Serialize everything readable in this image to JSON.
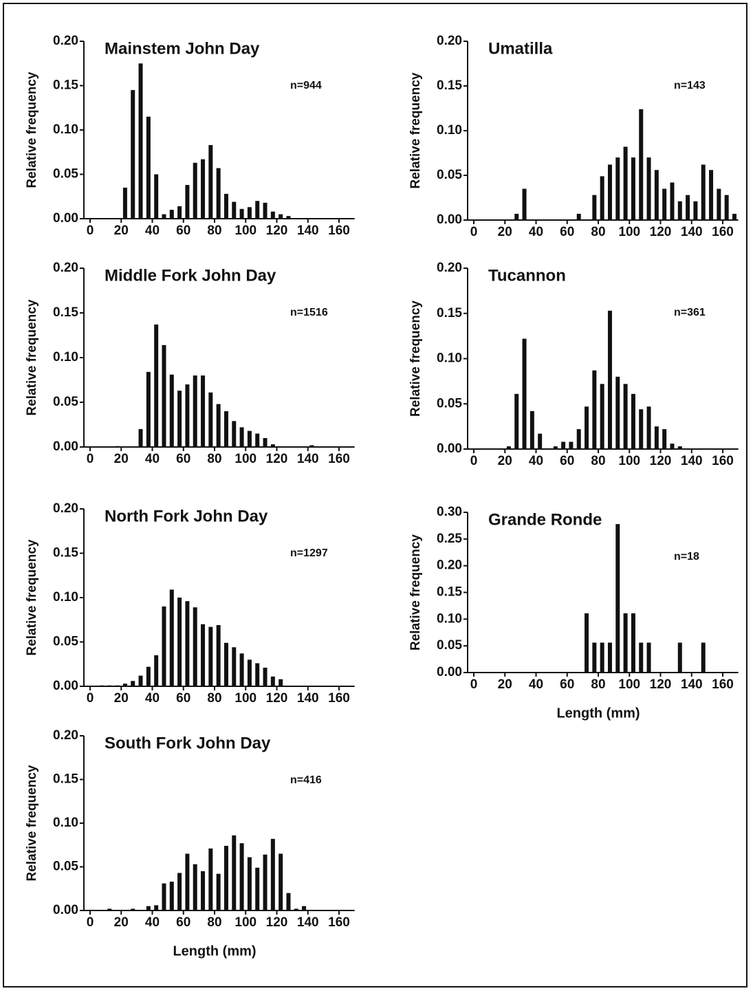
{
  "chart_data": [
    {
      "type": "bar",
      "title": "Mainstem John Day",
      "annotation": "n=944",
      "ylabel": "Relative frequency",
      "x": [
        22.5,
        27.5,
        32.5,
        37.5,
        42.5,
        47.5,
        52.5,
        57.5,
        62.5,
        67.5,
        72.5,
        77.5,
        82.5,
        87.5,
        92.5,
        97.5,
        102.5,
        107.5,
        112.5,
        117.5,
        122.5,
        127.5
      ],
      "values": [
        0.035,
        0.145,
        0.175,
        0.115,
        0.05,
        0.005,
        0.01,
        0.014,
        0.038,
        0.063,
        0.067,
        0.083,
        0.057,
        0.028,
        0.019,
        0.011,
        0.013,
        0.02,
        0.018,
        0.008,
        0.005,
        0.003
      ],
      "color": "#111111",
      "xlim": [
        0,
        170
      ],
      "xticks": [
        0,
        20,
        40,
        60,
        80,
        100,
        120,
        140,
        160
      ],
      "ylim": [
        0,
        0.2
      ],
      "yticks": [
        {
          "value": 0,
          "label": "0.00"
        },
        {
          "value": 0.05,
          "label": "0.05"
        },
        {
          "value": 0.1,
          "label": "0.10"
        },
        {
          "value": 0.15,
          "label": "0.15"
        },
        {
          "value": 0.2,
          "label": "0.20"
        }
      ]
    },
    {
      "type": "bar",
      "title": "Middle Fork John Day",
      "annotation": "n=1516",
      "ylabel": "Relative frequency",
      "x": [
        17.5,
        32.5,
        37.5,
        42.5,
        47.5,
        52.5,
        57.5,
        62.5,
        67.5,
        72.5,
        77.5,
        82.5,
        87.5,
        92.5,
        97.5,
        102.5,
        107.5,
        112.5,
        117.5,
        142.5
      ],
      "values": [
        0.001,
        0.02,
        0.084,
        0.137,
        0.114,
        0.081,
        0.063,
        0.07,
        0.08,
        0.08,
        0.061,
        0.048,
        0.04,
        0.029,
        0.022,
        0.018,
        0.015,
        0.01,
        0.003,
        0.002
      ],
      "color": "#111111",
      "xlim": [
        0,
        170
      ],
      "xticks": [
        0,
        20,
        40,
        60,
        80,
        100,
        120,
        140,
        160
      ],
      "ylim": [
        0,
        0.2
      ],
      "yticks": [
        {
          "value": 0,
          "label": "0.00"
        },
        {
          "value": 0.05,
          "label": "0.05"
        },
        {
          "value": 0.1,
          "label": "0.10"
        },
        {
          "value": 0.15,
          "label": "0.15"
        },
        {
          "value": 0.2,
          "label": "0.20"
        }
      ]
    },
    {
      "type": "bar",
      "title": "North Fork John Day",
      "annotation": "n=1297",
      "ylabel": "Relative frequency",
      "x": [
        7.5,
        12.5,
        17.5,
        22.5,
        27.5,
        32.5,
        37.5,
        42.5,
        47.5,
        52.5,
        57.5,
        62.5,
        67.5,
        72.5,
        77.5,
        82.5,
        87.5,
        92.5,
        97.5,
        102.5,
        107.5,
        112.5,
        117.5,
        122.5
      ],
      "values": [
        0.001,
        0.001,
        0.001,
        0.003,
        0.006,
        0.012,
        0.022,
        0.035,
        0.09,
        0.109,
        0.1,
        0.096,
        0.089,
        0.07,
        0.067,
        0.069,
        0.049,
        0.044,
        0.037,
        0.03,
        0.026,
        0.021,
        0.011,
        0.008
      ],
      "color": "#111111",
      "xlim": [
        0,
        170
      ],
      "xticks": [
        0,
        20,
        40,
        60,
        80,
        100,
        120,
        140,
        160
      ],
      "ylim": [
        0,
        0.2
      ],
      "yticks": [
        {
          "value": 0,
          "label": "0.00"
        },
        {
          "value": 0.05,
          "label": "0.05"
        },
        {
          "value": 0.1,
          "label": "0.10"
        },
        {
          "value": 0.15,
          "label": "0.15"
        },
        {
          "value": 0.2,
          "label": "0.20"
        }
      ]
    },
    {
      "type": "bar",
      "title": "South Fork John Day",
      "annotation": "n=416",
      "ylabel": "Relative frequency",
      "xlabel": "Length (mm)",
      "x": [
        12.5,
        27.5,
        37.5,
        42.5,
        47.5,
        52.5,
        57.5,
        62.5,
        67.5,
        72.5,
        77.5,
        82.5,
        87.5,
        92.5,
        97.5,
        102.5,
        107.5,
        112.5,
        117.5,
        122.5,
        127.5,
        132.5,
        137.5
      ],
      "values": [
        0.002,
        0.002,
        0.005,
        0.006,
        0.031,
        0.033,
        0.043,
        0.065,
        0.053,
        0.045,
        0.071,
        0.042,
        0.074,
        0.086,
        0.077,
        0.061,
        0.049,
        0.064,
        0.082,
        0.065,
        0.02,
        0.002,
        0.005
      ],
      "color": "#111111",
      "xlim": [
        0,
        170
      ],
      "xticks": [
        0,
        20,
        40,
        60,
        80,
        100,
        120,
        140,
        160
      ],
      "ylim": [
        0,
        0.2
      ],
      "yticks": [
        {
          "value": 0,
          "label": "0.00"
        },
        {
          "value": 0.05,
          "label": "0.05"
        },
        {
          "value": 0.1,
          "label": "0.10"
        },
        {
          "value": 0.15,
          "label": "0.15"
        },
        {
          "value": 0.2,
          "label": "0.20"
        }
      ]
    },
    {
      "type": "bar",
      "title": "Umatilla",
      "annotation": "n=143",
      "ylabel": "Relative frequency",
      "x": [
        27.5,
        32.5,
        67.5,
        77.5,
        82.5,
        87.5,
        92.5,
        97.5,
        102.5,
        107.5,
        112.5,
        117.5,
        122.5,
        127.5,
        132.5,
        137.5,
        142.5,
        147.5,
        152.5,
        157.5,
        162.5,
        167.5
      ],
      "values": [
        0.007,
        0.035,
        0.007,
        0.028,
        0.049,
        0.062,
        0.07,
        0.082,
        0.07,
        0.124,
        0.07,
        0.056,
        0.035,
        0.042,
        0.021,
        0.028,
        0.021,
        0.062,
        0.056,
        0.035,
        0.028,
        0.007
      ],
      "color": "#111111",
      "xlim": [
        0,
        170
      ],
      "xticks": [
        0,
        20,
        40,
        60,
        80,
        100,
        120,
        140,
        160
      ],
      "ylim": [
        0,
        0.2
      ],
      "yticks": [
        {
          "value": 0,
          "label": "0.00"
        },
        {
          "value": 0.05,
          "label": "0.05"
        },
        {
          "value": 0.1,
          "label": "0.10"
        },
        {
          "value": 0.15,
          "label": "0.15"
        },
        {
          "value": 0.2,
          "label": "0.20"
        }
      ]
    },
    {
      "type": "bar",
      "title": "Tucannon",
      "annotation": "n=361",
      "ylabel": "Relative frequency",
      "x": [
        22.5,
        27.5,
        32.5,
        37.5,
        42.5,
        52.5,
        57.5,
        62.5,
        67.5,
        72.5,
        77.5,
        82.5,
        87.5,
        92.5,
        97.5,
        102.5,
        107.5,
        112.5,
        117.5,
        122.5,
        127.5,
        132.5
      ],
      "values": [
        0.003,
        0.061,
        0.122,
        0.042,
        0.017,
        0.003,
        0.008,
        0.008,
        0.022,
        0.047,
        0.087,
        0.072,
        0.153,
        0.08,
        0.072,
        0.061,
        0.044,
        0.047,
        0.025,
        0.022,
        0.006,
        0.003
      ],
      "color": "#111111",
      "xlim": [
        0,
        170
      ],
      "xticks": [
        0,
        20,
        40,
        60,
        80,
        100,
        120,
        140,
        160
      ],
      "ylim": [
        0,
        0.2
      ],
      "yticks": [
        {
          "value": 0,
          "label": "0.00"
        },
        {
          "value": 0.05,
          "label": "0.05"
        },
        {
          "value": 0.1,
          "label": "0.10"
        },
        {
          "value": 0.15,
          "label": "0.15"
        },
        {
          "value": 0.2,
          "label": "0.20"
        }
      ]
    },
    {
      "type": "bar",
      "title": "Grande Ronde",
      "annotation": "n=18",
      "ylabel": "Relative frequency",
      "xlabel": "Length (mm)",
      "x": [
        72.5,
        77.5,
        82.5,
        87.5,
        92.5,
        97.5,
        102.5,
        107.5,
        112.5,
        132.5,
        147.5
      ],
      "values": [
        0.111,
        0.056,
        0.056,
        0.056,
        0.278,
        0.111,
        0.111,
        0.056,
        0.056,
        0.056,
        0.056
      ],
      "color": "#111111",
      "xlim": [
        0,
        170
      ],
      "xticks": [
        0,
        20,
        40,
        60,
        80,
        100,
        120,
        140,
        160
      ],
      "ylim": [
        0,
        0.3
      ],
      "yticks": [
        {
          "value": 0,
          "label": "0.00"
        },
        {
          "value": 0.05,
          "label": "0.05"
        },
        {
          "value": 0.1,
          "label": "0.10"
        },
        {
          "value": 0.15,
          "label": "0.15"
        },
        {
          "value": 0.2,
          "label": "0.20"
        },
        {
          "value": 0.25,
          "label": "0.25"
        },
        {
          "value": 0.3,
          "label": "0.30"
        }
      ]
    }
  ]
}
